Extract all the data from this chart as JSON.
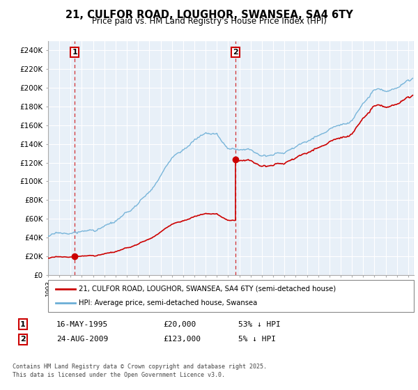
{
  "title": "21, CULFOR ROAD, LOUGHOR, SWANSEA, SA4 6TY",
  "subtitle": "Price paid vs. HM Land Registry's House Price Index (HPI)",
  "sale1_year": 1995.37,
  "sale1_price": 20000,
  "sale2_year": 2009.64,
  "sale2_price": 123000,
  "hpi_line_color": "#6baed6",
  "price_line_color": "#cc0000",
  "vline_color": "#cc0000",
  "bg_color": "#dce8f5",
  "grid_color": "#ffffff",
  "legend_entry1": "21, CULFOR ROAD, LOUGHOR, SWANSEA, SA4 6TY (semi-detached house)",
  "legend_entry2": "HPI: Average price, semi-detached house, Swansea",
  "table_row1": [
    "1",
    "16-MAY-1995",
    "£20,000",
    "53% ↓ HPI"
  ],
  "table_row2": [
    "2",
    "24-AUG-2009",
    "£123,000",
    "5% ↓ HPI"
  ],
  "footer": "Contains HM Land Registry data © Crown copyright and database right 2025.\nThis data is licensed under the Open Government Licence v3.0.",
  "yticks": [
    0,
    20000,
    40000,
    60000,
    80000,
    100000,
    120000,
    140000,
    160000,
    180000,
    200000,
    220000,
    240000
  ],
  "ytick_labels": [
    "£0",
    "£20K",
    "£40K",
    "£60K",
    "£80K",
    "£100K",
    "£120K",
    "£140K",
    "£160K",
    "£180K",
    "£200K",
    "£220K",
    "£240K"
  ],
  "hpi_anchors_x": [
    1993,
    1994,
    1995,
    1996,
    1997,
    1998,
    1999,
    2000,
    2001,
    2002,
    2003,
    2004,
    2005,
    2006,
    2007,
    2008,
    2009,
    2010,
    2011,
    2012,
    2013,
    2014,
    2015,
    2016,
    2017,
    2018,
    2019,
    2020,
    2021,
    2022,
    2023,
    2024,
    2025.4
  ],
  "hpi_anchors_v": [
    42000,
    43500,
    44000,
    45000,
    47000,
    50000,
    54000,
    60000,
    70000,
    83000,
    100000,
    118000,
    128000,
    138000,
    145000,
    143000,
    126000,
    128000,
    127000,
    126000,
    128000,
    130000,
    136000,
    143000,
    151000,
    157000,
    160000,
    163000,
    183000,
    197000,
    192000,
    196000,
    205000
  ],
  "noise_seed": 17,
  "noise_scale": 1200
}
